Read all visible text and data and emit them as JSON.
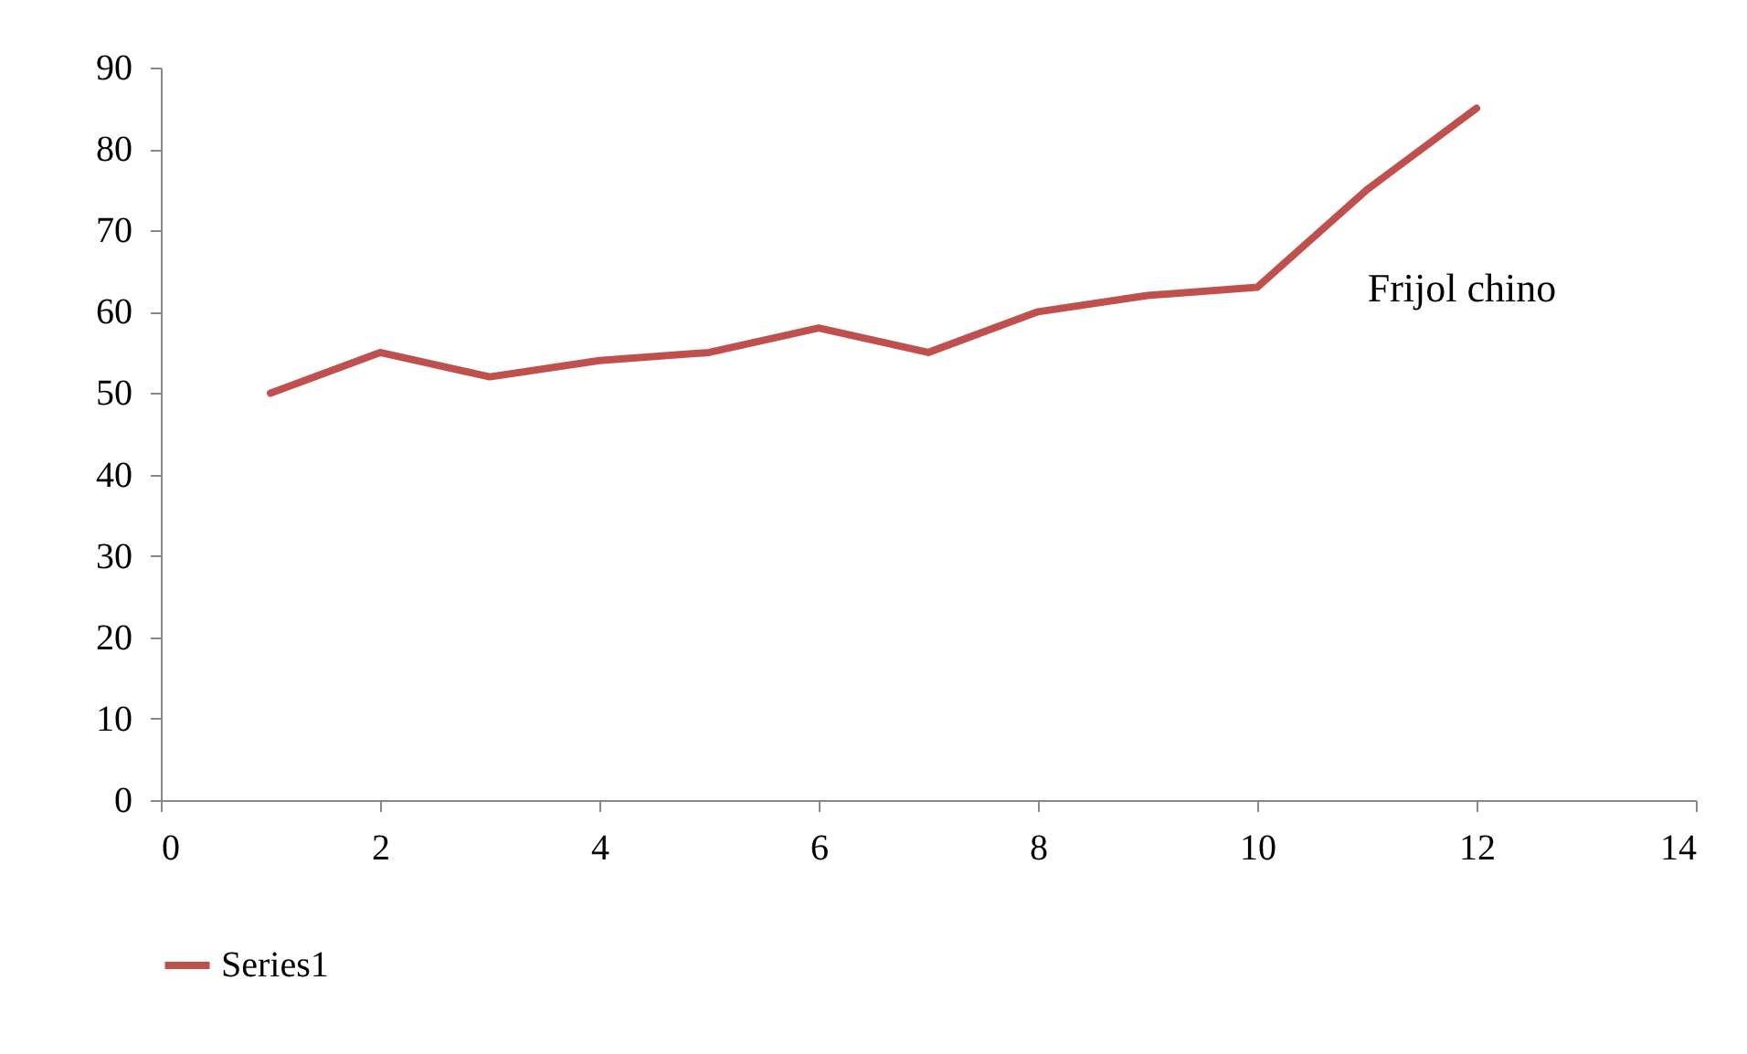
{
  "chart_data": {
    "type": "line",
    "x": [
      1,
      2,
      3,
      4,
      5,
      6,
      7,
      8,
      9,
      10,
      11,
      12
    ],
    "series": [
      {
        "name": "Series1",
        "color": "#c0504d",
        "values": [
          50,
          55,
          52,
          54,
          55,
          58,
          55,
          60,
          62,
          63,
          75,
          85
        ]
      }
    ],
    "xlim": [
      0,
      14
    ],
    "xticks": [
      0,
      2,
      4,
      6,
      8,
      10,
      12,
      14
    ],
    "ylim": [
      0,
      90
    ],
    "yticks": [
      0,
      10,
      20,
      30,
      40,
      50,
      60,
      70,
      80,
      90
    ],
    "annotations": [
      "Frijol chino"
    ],
    "legend": "bottom",
    "grid": false,
    "marker": "none",
    "line_style": "solid"
  }
}
